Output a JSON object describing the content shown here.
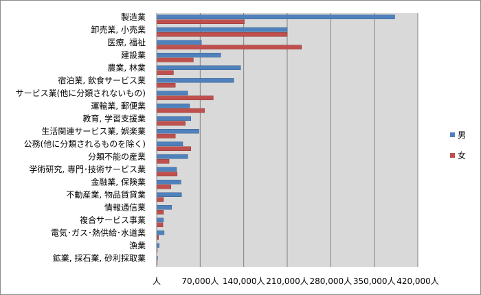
{
  "chart_data": {
    "type": "bar",
    "orientation": "horizontal",
    "title": "",
    "xlabel": "",
    "ylabel": "",
    "categories": [
      "製造業",
      "卸売業, 小売業",
      "医療, 福祉",
      "建設業",
      "農業, 林業",
      "宿泊業, 飲食サービス業",
      "サービス業(他に分類されないもの)",
      "運輸業, 郵便業",
      "教育, 学習支援業",
      "生活関連サービス業, 娯楽業",
      "公務(他に分類されるものを除く)",
      "分類不能の産業",
      "学術研究, 専門･技術サービス業",
      "金融業, 保険業",
      "不動産業, 物品賃貸業",
      "情報通信業",
      "複合サービス事業",
      "電気･ガス･熱供給･水道業",
      "漁業",
      "鉱業, 採石業, 砂利採取業"
    ],
    "series": [
      {
        "name": "男",
        "color": "#4f81bd",
        "values": [
          383000,
          210000,
          72000,
          103000,
          135000,
          124000,
          50000,
          53000,
          55000,
          68000,
          42000,
          50000,
          32000,
          39000,
          40000,
          24000,
          11000,
          12000,
          4000,
          1500
        ]
      },
      {
        "name": "女",
        "color": "#c0504d",
        "values": [
          141000,
          210000,
          233000,
          59000,
          27000,
          30000,
          91000,
          77000,
          46000,
          30000,
          55000,
          20000,
          33000,
          23000,
          11000,
          11000,
          10000,
          3000,
          1000,
          500
        ]
      }
    ],
    "xlim": [
      0,
      420000
    ],
    "xticks": [
      "人",
      "70,000人",
      "140,000人",
      "210,000人",
      "280,000人",
      "350,000人",
      "420,000人"
    ],
    "grid": true,
    "legend_position": "right"
  }
}
